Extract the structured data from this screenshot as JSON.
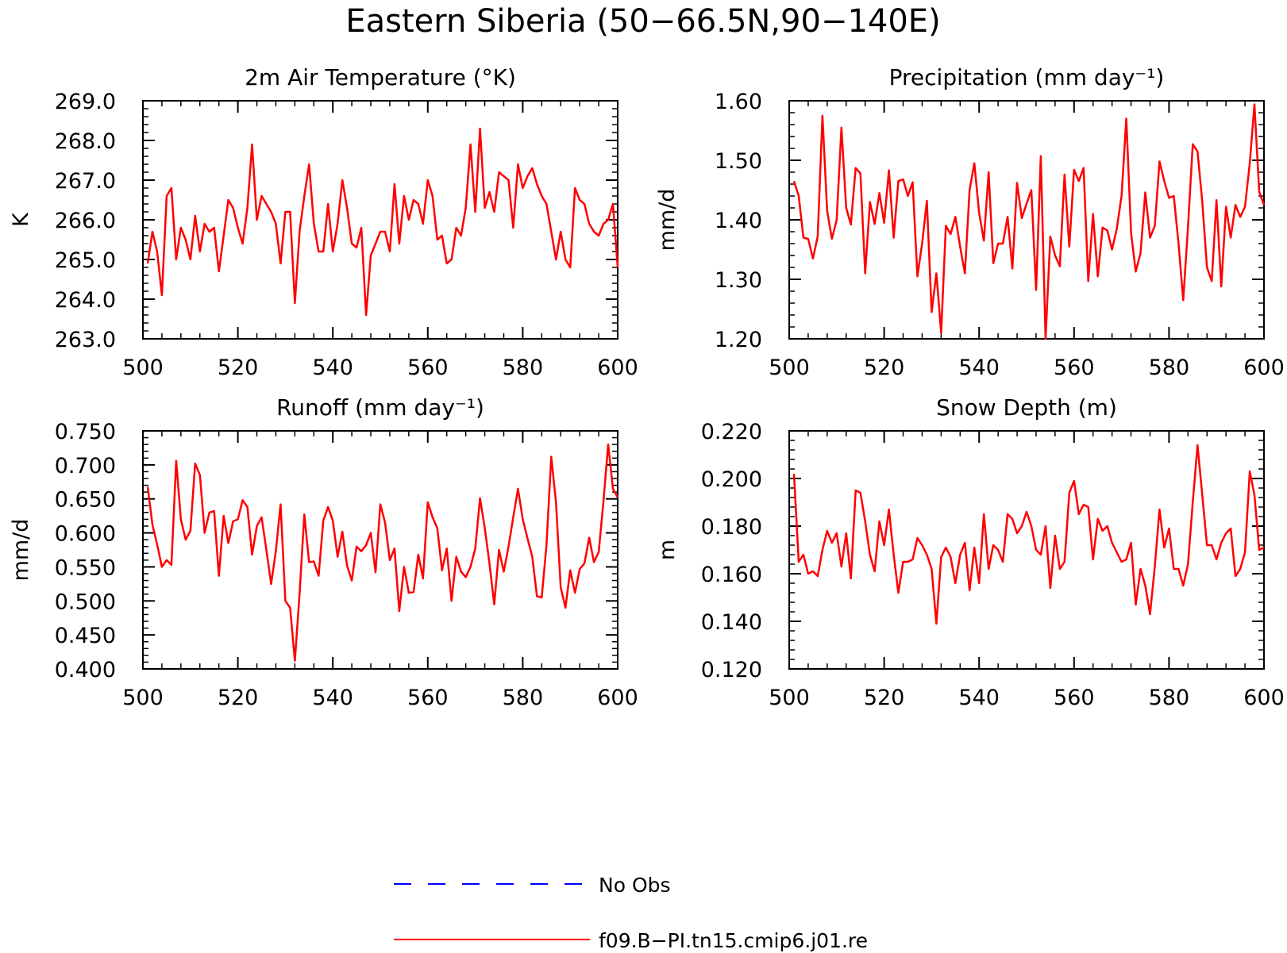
{
  "figure_title": "Eastern Siberia (50−66.5N,90−140E)",
  "legend": {
    "items": [
      {
        "label": "No Obs",
        "color": "#0000ff",
        "style": "dashed"
      },
      {
        "label": "f09.B−PI.tn15.cmip6.j01.re",
        "color": "#ff0000",
        "style": "solid"
      }
    ]
  },
  "chart_data": [
    {
      "type": "line",
      "title": "2m Air Temperature (°K)",
      "ylabel": "K",
      "xlim": [
        500,
        600
      ],
      "ylim": [
        263,
        269
      ],
      "xticks": [
        500,
        520,
        540,
        560,
        580,
        600
      ],
      "yticks": [
        263,
        264,
        265,
        266,
        267,
        268,
        269
      ],
      "ytick_labels": [
        "263.0",
        "264.0",
        "265.0",
        "266.0",
        "267.0",
        "268.0",
        "269.0"
      ],
      "x_start": 501,
      "series": [
        {
          "name": "f09.B−PI.tn15.cmip6.j01.re",
          "color": "#ff0000",
          "values": [
            264.9,
            265.7,
            265.2,
            264.1,
            266.6,
            266.8,
            265.0,
            265.8,
            265.5,
            265.0,
            266.1,
            265.2,
            265.9,
            265.7,
            265.8,
            264.7,
            265.6,
            266.5,
            266.3,
            265.8,
            265.4,
            266.3,
            267.9,
            266.0,
            266.6,
            266.4,
            266.2,
            265.9,
            264.9,
            266.2,
            266.2,
            263.9,
            265.7,
            266.6,
            267.4,
            265.9,
            265.2,
            265.2,
            266.4,
            265.2,
            265.9,
            267.0,
            266.3,
            265.4,
            265.3,
            265.8,
            263.6,
            265.1,
            265.4,
            265.7,
            265.7,
            265.2,
            266.9,
            265.4,
            266.6,
            266.0,
            266.5,
            266.4,
            265.9,
            267.0,
            266.6,
            265.5,
            265.6,
            264.9,
            265.0,
            265.8,
            265.6,
            266.3,
            267.9,
            266.2,
            268.3,
            266.3,
            266.7,
            266.2,
            267.2,
            267.1,
            267.0,
            265.8,
            267.4,
            266.8,
            267.1,
            267.3,
            266.9,
            266.6,
            266.4,
            265.7,
            265.0,
            265.7,
            265.0,
            264.8,
            266.8,
            266.5,
            266.4,
            265.9,
            265.7,
            265.6,
            265.9,
            266.0,
            266.4,
            264.8
          ]
        }
      ]
    },
    {
      "type": "line",
      "title": "Precipitation (mm day⁻¹)",
      "ylabel": "mm/d",
      "xlim": [
        500,
        600
      ],
      "ylim": [
        1.2,
        1.6
      ],
      "xticks": [
        500,
        520,
        540,
        560,
        580,
        600
      ],
      "yticks": [
        1.2,
        1.3,
        1.4,
        1.5,
        1.6
      ],
      "ytick_labels": [
        "1.20",
        "1.30",
        "1.40",
        "1.50",
        "1.60"
      ],
      "x_start": 501,
      "series": [
        {
          "name": "f09.B−PI.tn15.cmip6.j01.re",
          "color": "#ff0000",
          "values": [
            1.465,
            1.44,
            1.37,
            1.368,
            1.335,
            1.372,
            1.575,
            1.415,
            1.368,
            1.4,
            1.555,
            1.42,
            1.392,
            1.487,
            1.478,
            1.31,
            1.43,
            1.393,
            1.445,
            1.395,
            1.483,
            1.37,
            1.465,
            1.468,
            1.44,
            1.463,
            1.305,
            1.36,
            1.432,
            1.245,
            1.31,
            1.21,
            1.39,
            1.376,
            1.405,
            1.355,
            1.31,
            1.45,
            1.495,
            1.412,
            1.365,
            1.48,
            1.327,
            1.36,
            1.36,
            1.405,
            1.318,
            1.462,
            1.403,
            1.427,
            1.45,
            1.282,
            1.507,
            1.2,
            1.372,
            1.34,
            1.322,
            1.476,
            1.355,
            1.484,
            1.465,
            1.487,
            1.297,
            1.41,
            1.305,
            1.387,
            1.382,
            1.35,
            1.385,
            1.44,
            1.57,
            1.378,
            1.313,
            1.344,
            1.446,
            1.37,
            1.39,
            1.498,
            1.465,
            1.437,
            1.44,
            1.36,
            1.265,
            1.388,
            1.527,
            1.515,
            1.43,
            1.32,
            1.297,
            1.433,
            1.288,
            1.422,
            1.37,
            1.425,
            1.405,
            1.422,
            1.495,
            1.594,
            1.447,
            1.425
          ]
        }
      ]
    },
    {
      "type": "line",
      "title": "Runoff (mm day⁻¹)",
      "ylabel": "mm/d",
      "xlim": [
        500,
        600
      ],
      "ylim": [
        0.4,
        0.75
      ],
      "xticks": [
        500,
        520,
        540,
        560,
        580,
        600
      ],
      "yticks": [
        0.4,
        0.45,
        0.5,
        0.55,
        0.6,
        0.65,
        0.7,
        0.75
      ],
      "ytick_labels": [
        "0.400",
        "0.450",
        "0.500",
        "0.550",
        "0.600",
        "0.650",
        "0.700",
        "0.750"
      ],
      "x_start": 501,
      "series": [
        {
          "name": "f09.B−PI.tn15.cmip6.j01.re",
          "color": "#ff0000",
          "values": [
            0.668,
            0.612,
            0.583,
            0.55,
            0.56,
            0.553,
            0.706,
            0.62,
            0.59,
            0.603,
            0.702,
            0.685,
            0.6,
            0.63,
            0.632,
            0.537,
            0.625,
            0.585,
            0.617,
            0.62,
            0.648,
            0.638,
            0.568,
            0.61,
            0.623,
            0.575,
            0.525,
            0.573,
            0.642,
            0.5,
            0.49,
            0.412,
            0.51,
            0.627,
            0.557,
            0.558,
            0.537,
            0.618,
            0.638,
            0.618,
            0.565,
            0.602,
            0.552,
            0.53,
            0.58,
            0.573,
            0.582,
            0.6,
            0.542,
            0.642,
            0.615,
            0.56,
            0.577,
            0.485,
            0.55,
            0.512,
            0.513,
            0.568,
            0.533,
            0.645,
            0.623,
            0.607,
            0.545,
            0.577,
            0.5,
            0.565,
            0.543,
            0.535,
            0.55,
            0.577,
            0.651,
            0.607,
            0.555,
            0.495,
            0.575,
            0.543,
            0.58,
            0.623,
            0.665,
            0.62,
            0.592,
            0.565,
            0.507,
            0.505,
            0.582,
            0.712,
            0.645,
            0.52,
            0.49,
            0.545,
            0.512,
            0.547,
            0.555,
            0.593,
            0.557,
            0.572,
            0.647,
            0.73,
            0.665,
            0.652
          ]
        }
      ]
    },
    {
      "type": "line",
      "title": "Snow Depth (m)",
      "ylabel": "m",
      "xlim": [
        500,
        600
      ],
      "ylim": [
        0.12,
        0.22
      ],
      "xticks": [
        500,
        520,
        540,
        560,
        580,
        600
      ],
      "yticks": [
        0.12,
        0.14,
        0.16,
        0.18,
        0.2,
        0.22
      ],
      "ytick_labels": [
        "0.120",
        "0.140",
        "0.160",
        "0.180",
        "0.200",
        "0.220"
      ],
      "x_start": 501,
      "series": [
        {
          "name": "f09.B−PI.tn15.cmip6.j01.re",
          "color": "#ff0000",
          "values": [
            0.202,
            0.165,
            0.168,
            0.16,
            0.161,
            0.159,
            0.17,
            0.178,
            0.173,
            0.177,
            0.163,
            0.177,
            0.158,
            0.195,
            0.194,
            0.182,
            0.168,
            0.161,
            0.182,
            0.172,
            0.187,
            0.168,
            0.152,
            0.165,
            0.165,
            0.166,
            0.175,
            0.172,
            0.168,
            0.162,
            0.139,
            0.167,
            0.171,
            0.167,
            0.156,
            0.168,
            0.173,
            0.153,
            0.171,
            0.156,
            0.185,
            0.162,
            0.172,
            0.17,
            0.165,
            0.185,
            0.183,
            0.177,
            0.18,
            0.186,
            0.18,
            0.17,
            0.168,
            0.18,
            0.154,
            0.176,
            0.162,
            0.165,
            0.194,
            0.199,
            0.185,
            0.189,
            0.188,
            0.166,
            0.183,
            0.178,
            0.18,
            0.173,
            0.169,
            0.165,
            0.166,
            0.173,
            0.147,
            0.162,
            0.155,
            0.143,
            0.163,
            0.187,
            0.171,
            0.179,
            0.162,
            0.162,
            0.155,
            0.164,
            0.19,
            0.214,
            0.193,
            0.172,
            0.172,
            0.166,
            0.173,
            0.177,
            0.179,
            0.159,
            0.162,
            0.169,
            0.203,
            0.193,
            0.17,
            0.171
          ]
        }
      ]
    }
  ]
}
